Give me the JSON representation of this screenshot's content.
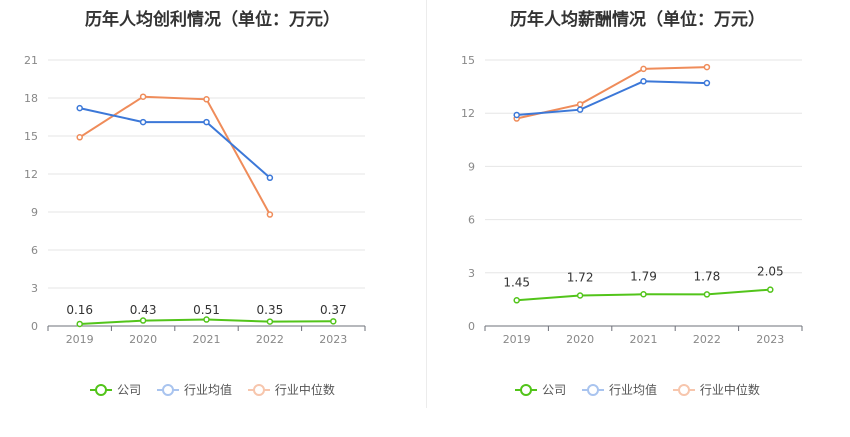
{
  "chart_data": [
    {
      "type": "line",
      "title": "历年人均创利情况（单位：万元）",
      "categories": [
        "2019",
        "2020",
        "2021",
        "2022",
        "2023"
      ],
      "ylim": [
        0,
        21
      ],
      "yticks": [
        "0",
        "3",
        "6",
        "9",
        "12",
        "15",
        "18",
        "21"
      ],
      "grid": true,
      "legend": "bottom",
      "series": [
        {
          "name": "公司",
          "color": "#52c41a",
          "values": [
            0.16,
            0.43,
            0.51,
            0.35,
            0.37
          ],
          "labels": [
            "0.16",
            "0.43",
            "0.51",
            "0.35",
            "0.37"
          ]
        },
        {
          "name": "行业均值",
          "color": "#3c78d8",
          "values": [
            17.2,
            16.1,
            16.1,
            11.7,
            null
          ]
        },
        {
          "name": "行业中位数",
          "color": "#ef8c5a",
          "values": [
            14.9,
            18.1,
            17.9,
            8.8,
            null
          ]
        }
      ]
    },
    {
      "type": "line",
      "title": "历年人均薪酬情况（单位：万元）",
      "categories": [
        "2019",
        "2020",
        "2021",
        "2022",
        "2023"
      ],
      "ylim": [
        0,
        15
      ],
      "yticks": [
        "0",
        "3",
        "6",
        "9",
        "12",
        "15"
      ],
      "grid": true,
      "legend": "bottom",
      "series": [
        {
          "name": "公司",
          "color": "#52c41a",
          "values": [
            1.45,
            1.72,
            1.79,
            1.78,
            2.05
          ],
          "labels": [
            "1.45",
            "1.72",
            "1.79",
            "1.78",
            "2.05"
          ]
        },
        {
          "name": "行业均值",
          "color": "#3c78d8",
          "values": [
            11.9,
            12.2,
            13.8,
            13.7,
            null
          ]
        },
        {
          "name": "行业中位数",
          "color": "#ef8c5a",
          "values": [
            11.7,
            12.5,
            14.5,
            14.6,
            null
          ]
        }
      ]
    }
  ]
}
